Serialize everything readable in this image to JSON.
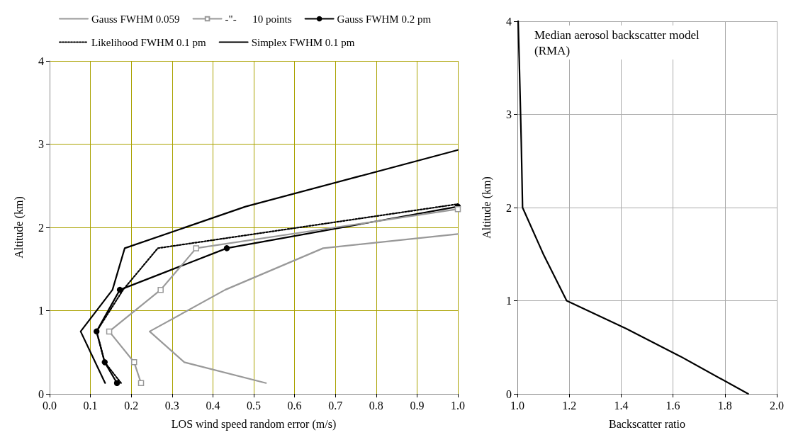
{
  "chart_data": [
    {
      "type": "line",
      "xlabel": "LOS wind speed random error (m/s)",
      "ylabel": "Altitude (km)",
      "xlim": [
        0,
        1
      ],
      "ylim": [
        0,
        4
      ],
      "xticks": [
        {
          "value": 0,
          "label": "0.0"
        },
        0.1,
        0.2,
        0.3,
        0.4,
        0.5,
        0.6,
        0.7,
        0.8,
        0.9,
        {
          "value": 1,
          "label": "1.0"
        }
      ],
      "yticks": [
        0,
        1,
        2,
        3,
        4
      ],
      "grid": true,
      "legend": "top left",
      "series": [
        {
          "name": "Gauss FWHM 0.059",
          "color": "#999999",
          "marker": "none",
          "line_style": "solid",
          "x": [
            0.53,
            0.33,
            0.245,
            0.43,
            0.67,
            1.0
          ],
          "values": [
            0.13,
            0.38,
            0.75,
            1.25,
            1.75,
            1.92
          ]
        },
        {
          "name": "-\"-      10 points",
          "color": "#999999",
          "marker": "square",
          "line_style": "solid",
          "x": [
            0.224,
            0.207,
            0.146,
            0.272,
            0.359,
            1.0
          ],
          "values": [
            0.13,
            0.38,
            0.75,
            1.25,
            1.75,
            2.22
          ]
        },
        {
          "name": "Gauss FWHM 0.2 pm",
          "color": "#000000",
          "marker": "circle",
          "line_style": "solid",
          "x": [
            0.165,
            0.135,
            0.115,
            0.172,
            0.434,
            1.0
          ],
          "values": [
            0.13,
            0.38,
            0.75,
            1.25,
            1.75,
            2.25
          ]
        },
        {
          "name": "Likelihood FWHM 0.1 pm",
          "color": "#000000",
          "marker": "none",
          "line_style": "dotted",
          "x": [
            0.175,
            0.135,
            0.115,
            0.18,
            0.265,
            1.0
          ],
          "values": [
            0.13,
            0.38,
            0.75,
            1.25,
            1.75,
            2.28
          ]
        },
        {
          "name": "Simplex FWHM 0.1 pm",
          "color": "#000000",
          "marker": "none",
          "line_style": "solid",
          "x": [
            0.136,
            0.076,
            0.154,
            0.184,
            0.48,
            1.0
          ],
          "values": [
            0.13,
            0.75,
            1.25,
            1.75,
            2.25,
            2.93
          ]
        }
      ]
    },
    {
      "type": "line",
      "xlabel": "Backscatter ratio",
      "ylabel": "Altitude (km)",
      "xlim": [
        1,
        2
      ],
      "ylim": [
        0,
        4
      ],
      "xticks": [
        {
          "value": 1,
          "label": "1.0"
        },
        1.2,
        1.4,
        1.6,
        1.8,
        {
          "value": 2,
          "label": "2.0"
        }
      ],
      "yticks": [
        0,
        1,
        2,
        3,
        4
      ],
      "grid": true,
      "annotations": [
        "Median aerosol backscatter model (RMA)"
      ],
      "series": [
        {
          "color": "#000000",
          "marker": "none",
          "line_style": "solid",
          "x": [
            1.89,
            1.63,
            1.42,
            1.19,
            1.1,
            1.02,
            1.015,
            1.007,
            1.003
          ],
          "values": [
            0,
            0.4,
            0.7,
            1.0,
            1.5,
            2.0,
            2.7,
            3.6,
            4.0
          ]
        }
      ]
    }
  ]
}
